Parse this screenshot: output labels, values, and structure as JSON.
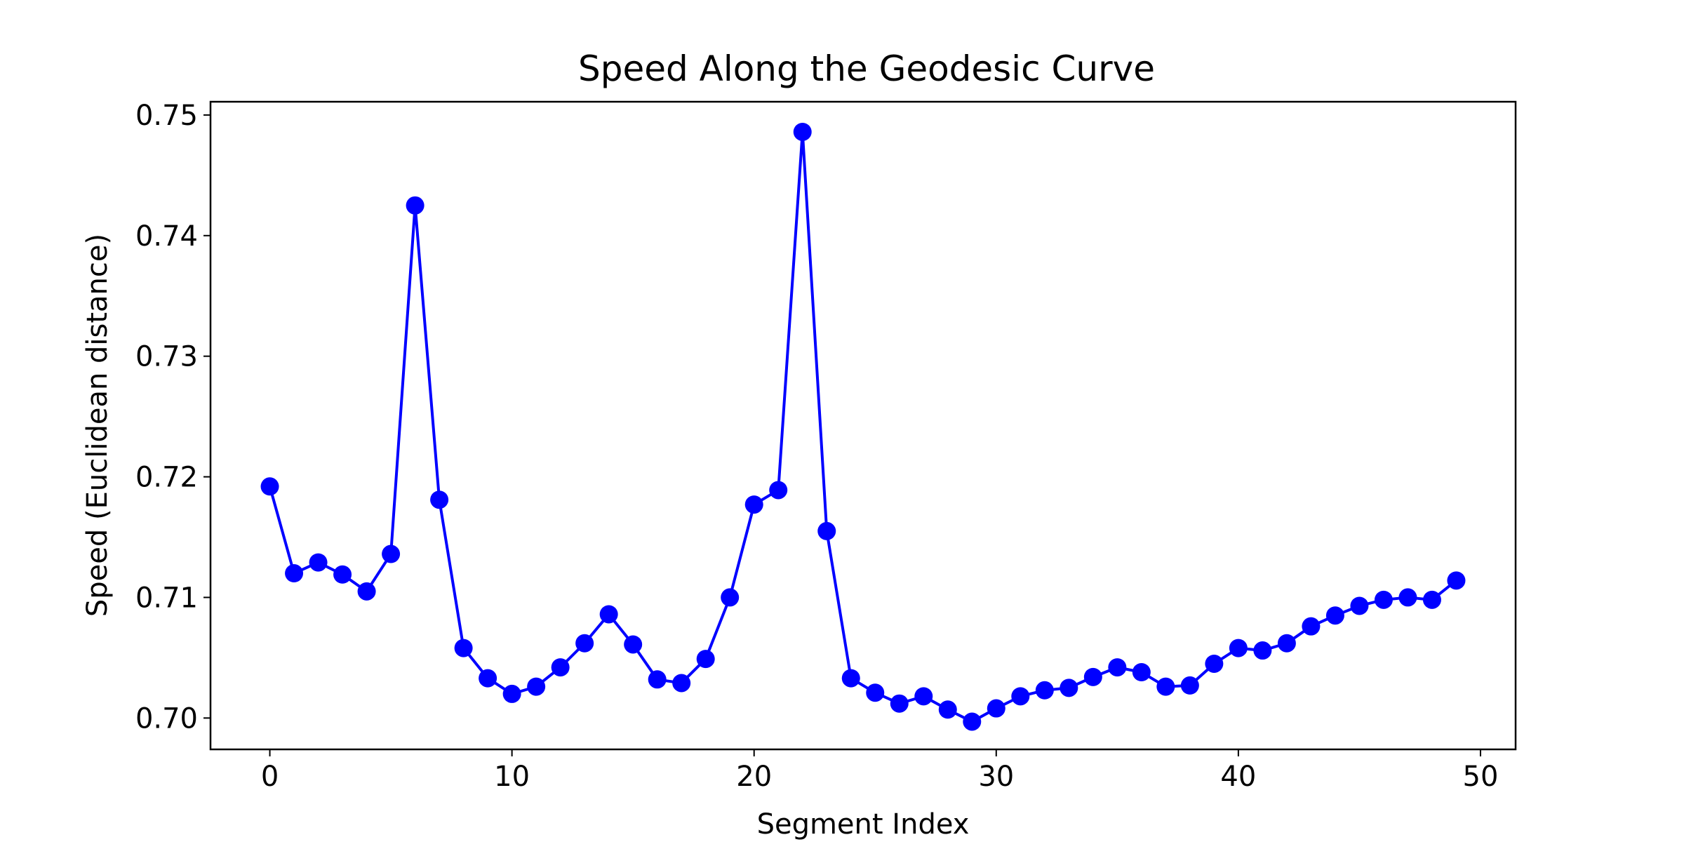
{
  "chart_data": {
    "type": "line",
    "title": "Speed Along the Geodesic Curve",
    "xlabel": "Segment Index",
    "ylabel": "Speed (Euclidean distance)",
    "xlim": [
      -2.45,
      51.45
    ],
    "ylim": [
      0.6974,
      0.7511
    ],
    "x_ticks": [
      {
        "value": 0,
        "label": "0"
      },
      {
        "value": 10,
        "label": "10"
      },
      {
        "value": 20,
        "label": "20"
      },
      {
        "value": 30,
        "label": "30"
      },
      {
        "value": 40,
        "label": "40"
      },
      {
        "value": 50,
        "label": "50"
      }
    ],
    "y_ticks": [
      {
        "value": 0.7,
        "label": "0.70"
      },
      {
        "value": 0.71,
        "label": "0.71"
      },
      {
        "value": 0.72,
        "label": "0.72"
      },
      {
        "value": 0.73,
        "label": "0.73"
      },
      {
        "value": 0.74,
        "label": "0.74"
      },
      {
        "value": 0.75,
        "label": "0.75"
      }
    ],
    "grid": false,
    "legend": "none",
    "color": "#0000ff",
    "marker": "circle",
    "series": [
      {
        "x": [
          0,
          1,
          2,
          3,
          4,
          5,
          6,
          7,
          8,
          9,
          10,
          11,
          12,
          13,
          14,
          15,
          16,
          17,
          18,
          19,
          20,
          21,
          22,
          23,
          24,
          25,
          26,
          27,
          28,
          29,
          30,
          31,
          32,
          33,
          34,
          35,
          36,
          37,
          38,
          39,
          40,
          41,
          42,
          43,
          44,
          45,
          46,
          47,
          48,
          49
        ],
        "y": [
          0.7192,
          0.712,
          0.7129,
          0.7119,
          0.7105,
          0.7136,
          0.7425,
          0.7181,
          0.7058,
          0.7033,
          0.702,
          0.7026,
          0.7042,
          0.7062,
          0.7086,
          0.7061,
          0.7032,
          0.7029,
          0.7049,
          0.71,
          0.7177,
          0.7189,
          0.7486,
          0.7155,
          0.7033,
          0.7021,
          0.7012,
          0.7018,
          0.7007,
          0.6997,
          0.7008,
          0.7018,
          0.7023,
          0.7025,
          0.7034,
          0.7042,
          0.7038,
          0.7026,
          0.7027,
          0.7045,
          0.7058,
          0.7056,
          0.7062,
          0.7076,
          0.7085,
          0.7093,
          0.7098,
          0.71,
          0.7098,
          0.7114
        ]
      }
    ]
  }
}
